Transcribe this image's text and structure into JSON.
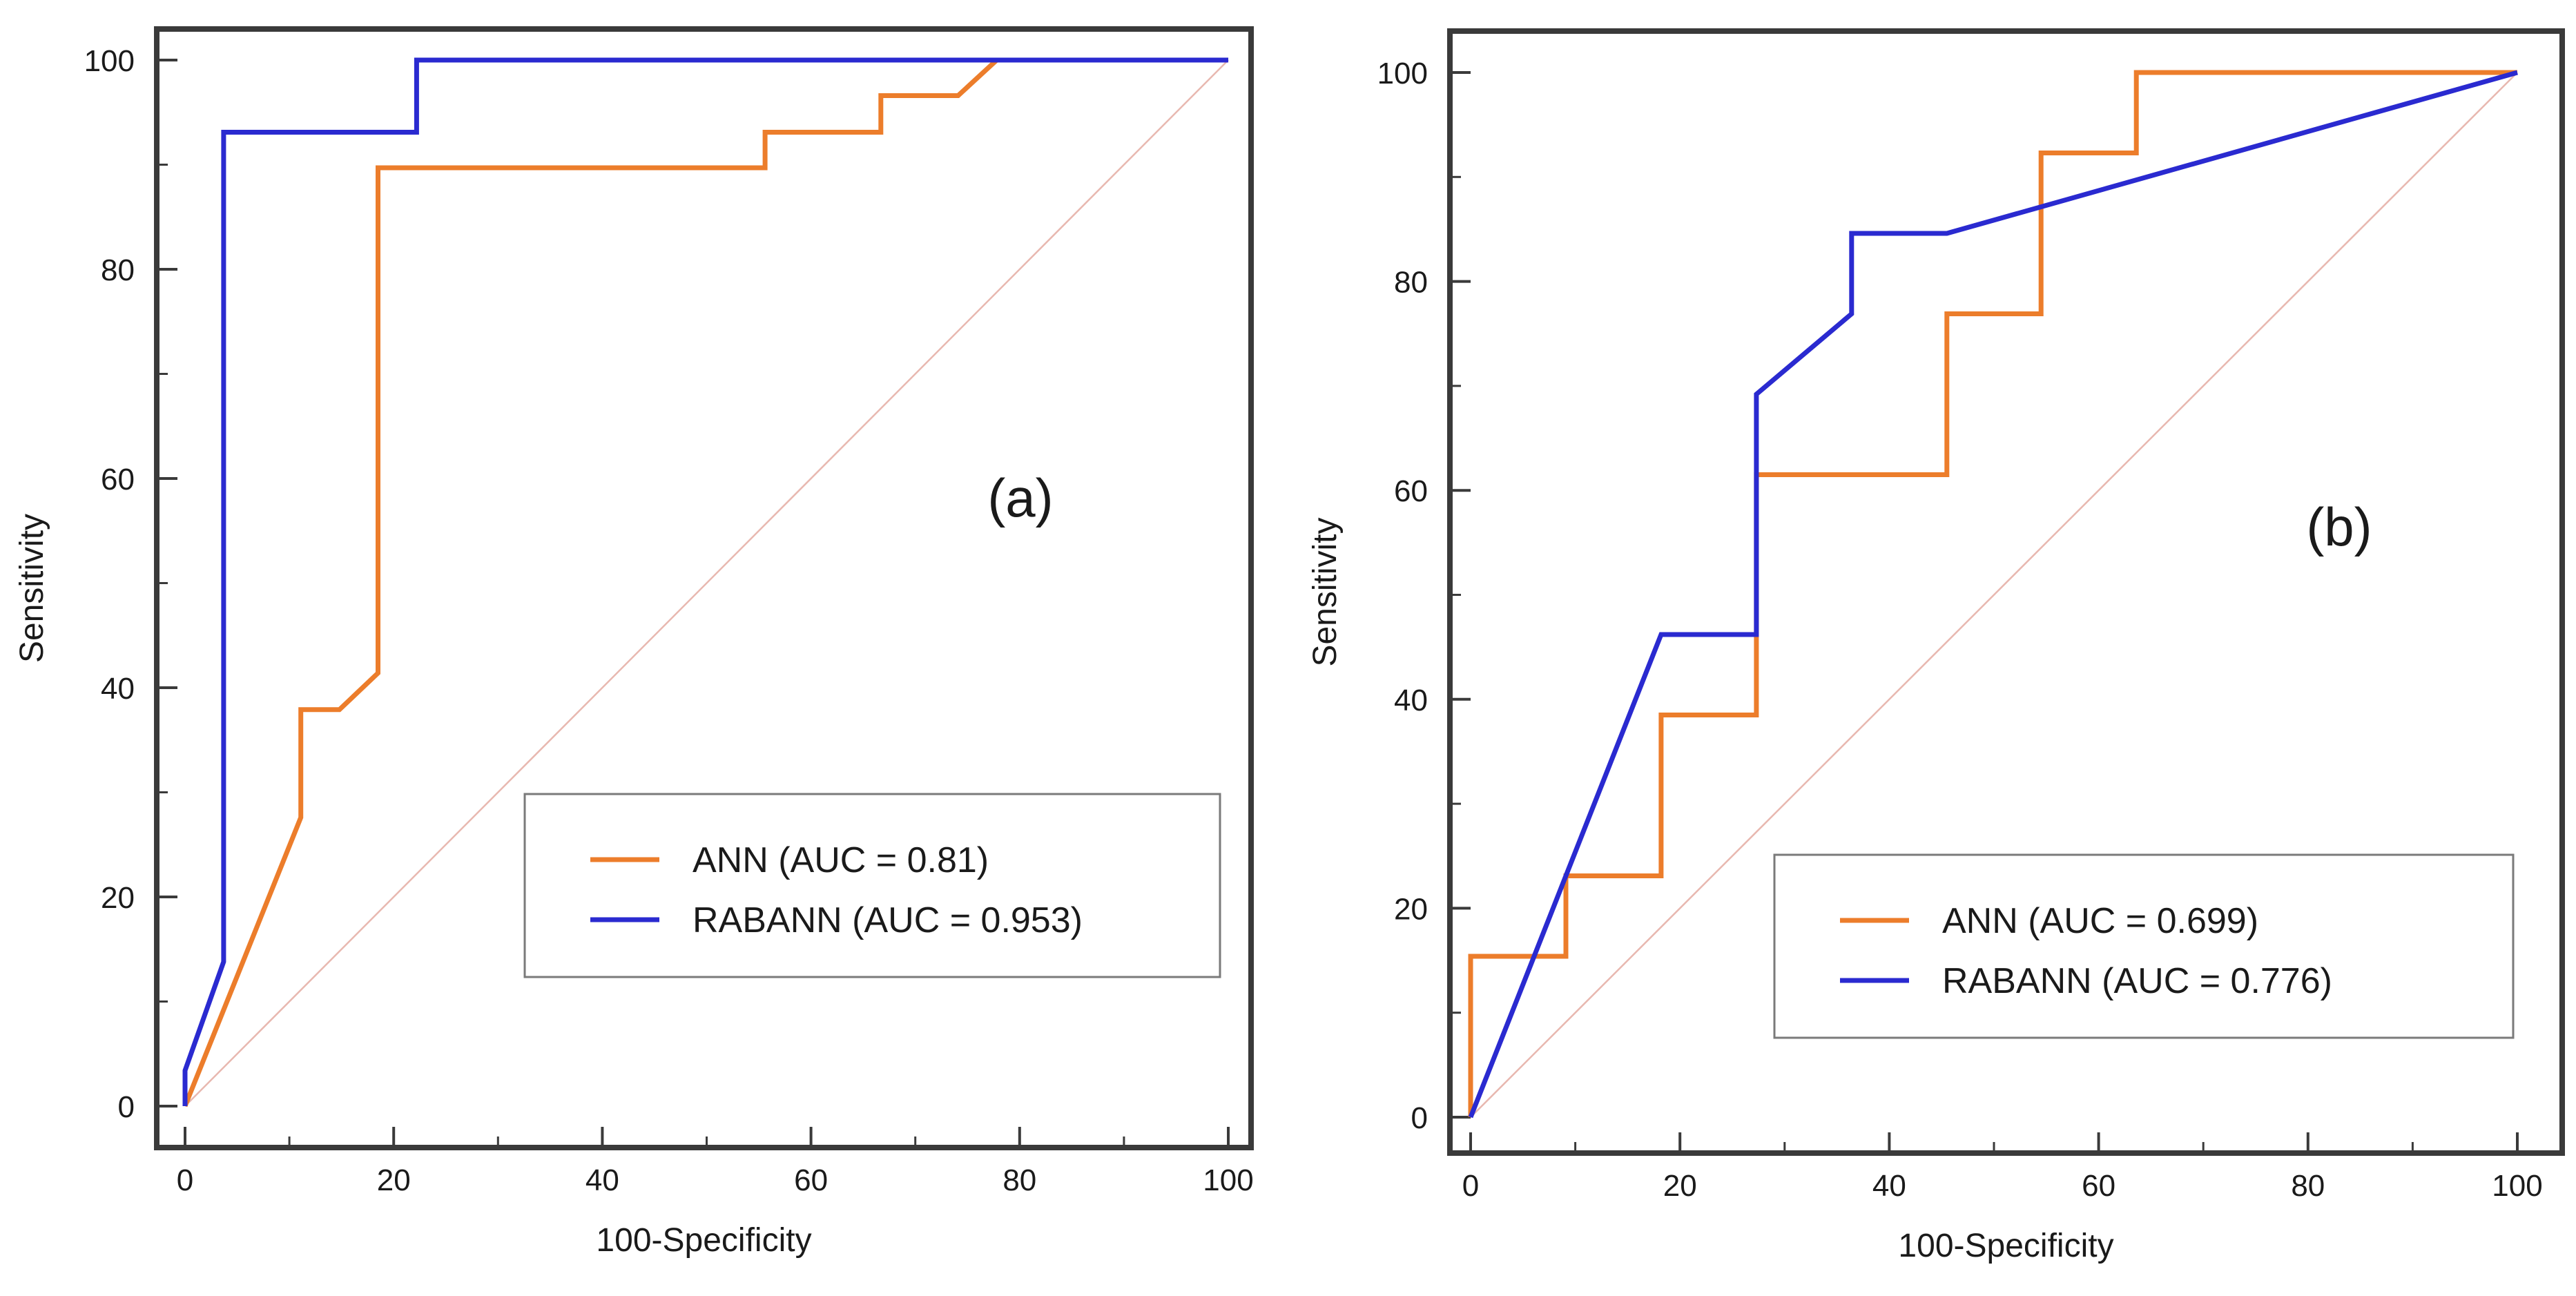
{
  "chart_data": [
    {
      "type": "line",
      "panel_label": "(a)",
      "xlabel": "100-Specificity",
      "ylabel": "Sensitivity",
      "xlim": [
        0,
        100
      ],
      "ylim": [
        0,
        100
      ],
      "x_ticks": [
        0,
        20,
        40,
        60,
        80,
        100
      ],
      "y_ticks": [
        0,
        20,
        40,
        60,
        80,
        100
      ],
      "x_tick_labels": [
        "0",
        "20",
        "40",
        "60",
        "80",
        "100"
      ],
      "y_tick_labels": [
        "0",
        "20",
        "40",
        "60",
        "80",
        "100"
      ],
      "grid": false,
      "legend_position": "lower-right",
      "diagonal": {
        "name": "reference",
        "x": [
          0,
          100
        ],
        "y": [
          0,
          100
        ],
        "color": "#e8b8b0"
      },
      "series": [
        {
          "name": "ANN (AUC = 0.81)",
          "color": "#ec7d2b",
          "x": [
            0,
            0,
            11.1,
            11.1,
            14.8,
            18.5,
            18.5,
            55.6,
            55.6,
            66.7,
            66.7,
            74.1,
            77.8,
            100
          ],
          "y": [
            0,
            0.0,
            27.6,
            37.9,
            37.9,
            41.4,
            89.7,
            89.7,
            93.1,
            93.1,
            96.6,
            96.6,
            100,
            100
          ]
        },
        {
          "name": "RABANN (AUC = 0.953)",
          "color": "#2a2ad0",
          "x": [
            0,
            0,
            3.7,
            3.7,
            22.2,
            22.2,
            100
          ],
          "y": [
            0,
            3.4,
            13.8,
            93.1,
            93.1,
            100,
            100
          ]
        }
      ]
    },
    {
      "type": "line",
      "panel_label": "(b)",
      "xlabel": "100-Specificity",
      "ylabel": "Sensitivity",
      "xlim": [
        0,
        100
      ],
      "ylim": [
        0,
        100
      ],
      "x_ticks": [
        0,
        20,
        40,
        60,
        80,
        100
      ],
      "y_ticks": [
        0,
        20,
        40,
        60,
        80,
        100
      ],
      "x_tick_labels": [
        "0",
        "20",
        "40",
        "60",
        "80",
        "100"
      ],
      "y_tick_labels": [
        "0",
        "20",
        "40",
        "60",
        "80",
        "100"
      ],
      "grid": false,
      "legend_position": "lower-right",
      "diagonal": {
        "name": "reference",
        "x": [
          0,
          100
        ],
        "y": [
          0,
          100
        ],
        "color": "#e8b8b0"
      },
      "series": [
        {
          "name": "ANN (AUC = 0.699)",
          "color": "#ec7d2b",
          "x": [
            0,
            0,
            9.1,
            9.1,
            18.2,
            18.2,
            27.3,
            27.3,
            45.5,
            45.5,
            54.5,
            54.5,
            63.6,
            63.6,
            100
          ],
          "y": [
            0,
            15.4,
            15.4,
            23.1,
            23.1,
            38.5,
            38.5,
            61.5,
            61.5,
            76.9,
            76.9,
            92.3,
            92.3,
            100,
            100
          ]
        },
        {
          "name": "RABANN (AUC = 0.776)",
          "color": "#2a2ad0",
          "x": [
            0,
            18.2,
            27.3,
            27.3,
            36.4,
            36.4,
            45.5,
            100
          ],
          "y": [
            0,
            46.2,
            46.2,
            69.2,
            76.9,
            84.6,
            84.6,
            100
          ]
        }
      ]
    }
  ]
}
